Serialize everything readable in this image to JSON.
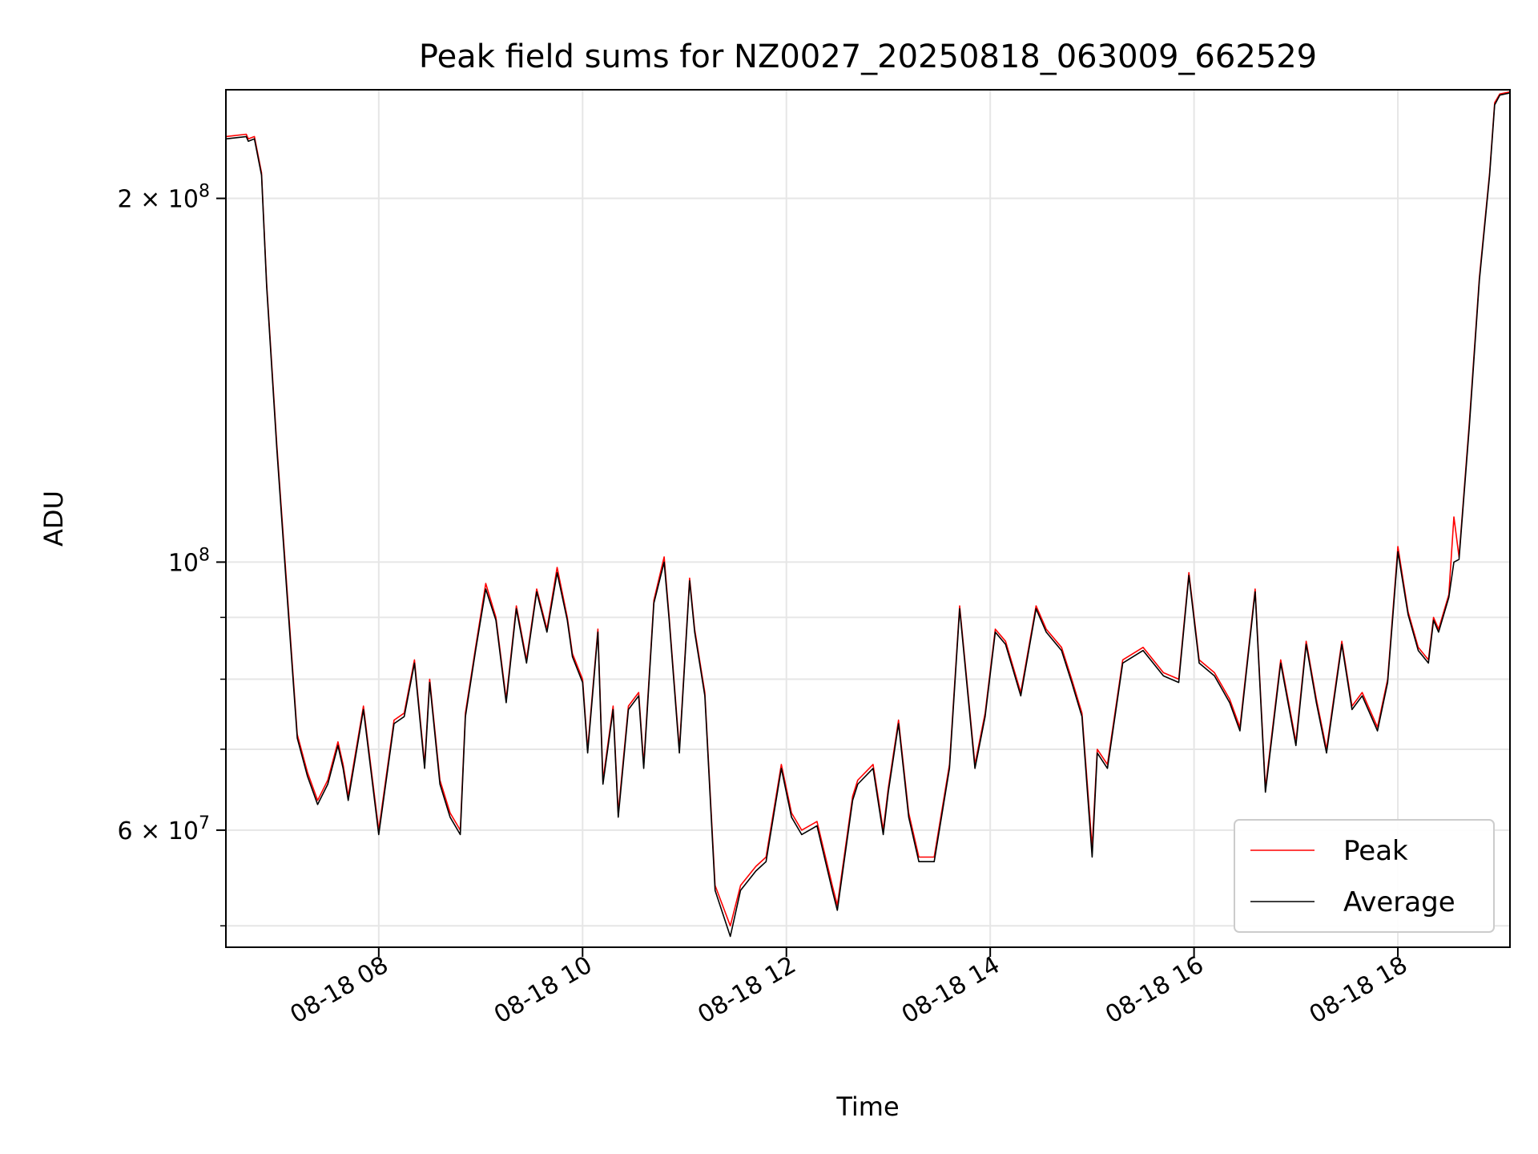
{
  "chart_data": {
    "type": "line",
    "title": "Peak field sums for NZ0027_20250818_063009_662529",
    "xlabel": "Time",
    "ylabel": "ADU",
    "x_unit": "hours (time of day, 2025-08-18)",
    "xlim": [
      6.5,
      19.1
    ],
    "ylim": [
      48000000,
      246000000
    ],
    "yscale": "log",
    "grid": true,
    "legend_position": "lower-right",
    "x_tick_values": [
      8,
      10,
      12,
      14,
      16,
      18
    ],
    "x_tick_labels": [
      "08-18 08",
      "08-18 10",
      "08-18 12",
      "08-18 14",
      "08-18 16",
      "08-18 18"
    ],
    "y_major_ticks": [
      {
        "value": 60000000,
        "mantissa": "6",
        "exp": "7"
      },
      {
        "value": 100000000,
        "mantissa": "",
        "exp": "8"
      },
      {
        "value": 200000000,
        "mantissa": "2",
        "exp": "8"
      }
    ],
    "y_minor_ticks": [
      50000000,
      70000000,
      80000000,
      90000000
    ],
    "x": [
      6.5,
      6.7,
      6.72,
      6.78,
      6.85,
      6.9,
      7.0,
      7.1,
      7.2,
      7.3,
      7.4,
      7.5,
      7.6,
      7.65,
      7.7,
      7.85,
      8.0,
      8.15,
      8.25,
      8.35,
      8.45,
      8.5,
      8.6,
      8.7,
      8.8,
      8.85,
      8.95,
      9.05,
      9.15,
      9.25,
      9.35,
      9.45,
      9.55,
      9.65,
      9.75,
      9.85,
      9.9,
      10.0,
      10.05,
      10.15,
      10.2,
      10.3,
      10.35,
      10.45,
      10.55,
      10.6,
      10.7,
      10.8,
      10.85,
      10.95,
      11.05,
      11.1,
      11.2,
      11.3,
      11.45,
      11.55,
      11.7,
      11.8,
      11.95,
      12.05,
      12.15,
      12.3,
      12.45,
      12.5,
      12.65,
      12.7,
      12.85,
      12.95,
      13.0,
      13.1,
      13.2,
      13.3,
      13.45,
      13.6,
      13.7,
      13.85,
      13.95,
      14.05,
      14.15,
      14.3,
      14.45,
      14.55,
      14.7,
      14.8,
      14.9,
      15.0,
      15.05,
      15.15,
      15.3,
      15.5,
      15.7,
      15.85,
      15.95,
      16.05,
      16.2,
      16.35,
      16.45,
      16.6,
      16.7,
      16.85,
      17.0,
      17.1,
      17.2,
      17.3,
      17.45,
      17.55,
      17.65,
      17.8,
      17.9,
      18.0,
      18.1,
      18.2,
      18.3,
      18.35,
      18.4,
      18.5,
      18.55,
      18.6,
      18.7,
      18.8,
      18.9,
      18.95,
      19.0,
      19.1
    ],
    "series": [
      {
        "name": "Peak",
        "color": "#ff0000",
        "values": [
          225000000,
          226000000,
          224000000,
          225000000,
          210000000,
          170000000,
          125000000,
          95000000,
          72000000,
          67000000,
          63500000,
          66000000,
          71000000,
          68000000,
          64000000,
          76000000,
          60000000,
          74000000,
          75000000,
          83000000,
          68000000,
          80000000,
          66000000,
          62000000,
          60000000,
          75000000,
          85000000,
          96000000,
          90000000,
          77000000,
          92000000,
          83000000,
          95000000,
          88000000,
          99000000,
          90000000,
          84000000,
          80000000,
          70000000,
          88000000,
          66000000,
          76000000,
          62000000,
          76000000,
          78000000,
          68000000,
          93000000,
          101000000,
          90000000,
          70000000,
          97000000,
          88000000,
          78000000,
          54000000,
          50000000,
          54000000,
          56000000,
          57000000,
          68000000,
          62000000,
          60000000,
          61000000,
          54000000,
          52000000,
          64000000,
          66000000,
          68000000,
          60000000,
          65000000,
          74000000,
          62000000,
          57000000,
          57000000,
          68000000,
          92000000,
          68000000,
          75000000,
          88000000,
          86000000,
          78000000,
          92000000,
          88000000,
          85000000,
          80000000,
          75000000,
          58000000,
          70000000,
          68000000,
          83000000,
          85000000,
          81000000,
          80000000,
          98000000,
          83000000,
          81000000,
          77000000,
          73000000,
          95000000,
          65000000,
          83000000,
          71000000,
          86000000,
          77000000,
          70000000,
          86000000,
          76000000,
          78000000,
          73000000,
          80000000,
          103000000,
          91000000,
          85000000,
          83000000,
          90000000,
          88000000,
          94000000,
          109000000,
          101000000,
          130000000,
          172000000,
          210000000,
          240000000,
          244000000,
          245000000
        ]
      },
      {
        "name": "Average",
        "color": "#000000",
        "values": [
          224000000,
          225000000,
          223000000,
          224000000,
          209000000,
          169000000,
          124000000,
          94000000,
          71500000,
          66500000,
          63000000,
          65500000,
          70500000,
          67500000,
          63500000,
          75500000,
          59500000,
          73500000,
          74500000,
          82500000,
          67500000,
          79500000,
          65500000,
          61500000,
          59500000,
          74500000,
          84500000,
          95000000,
          89500000,
          76500000,
          91500000,
          82500000,
          94500000,
          87500000,
          98000000,
          89500000,
          83500000,
          79500000,
          69500000,
          87500000,
          65500000,
          75500000,
          61500000,
          75500000,
          77500000,
          67500000,
          92500000,
          100000000,
          89500000,
          69500000,
          96500000,
          87500000,
          77500000,
          53500000,
          49000000,
          53500000,
          55500000,
          56500000,
          67500000,
          61500000,
          59500000,
          60500000,
          53500000,
          51500000,
          63500000,
          65500000,
          67500000,
          59500000,
          64500000,
          73500000,
          61500000,
          56500000,
          56500000,
          67500000,
          91500000,
          67500000,
          74500000,
          87500000,
          85500000,
          77500000,
          91500000,
          87500000,
          84500000,
          79500000,
          74500000,
          57000000,
          69500000,
          67500000,
          82500000,
          84500000,
          80500000,
          79500000,
          97500000,
          82500000,
          80500000,
          76500000,
          72500000,
          94500000,
          64500000,
          82500000,
          70500000,
          85500000,
          76500000,
          69500000,
          85500000,
          75500000,
          77500000,
          72500000,
          79500000,
          102000000,
          90500000,
          84500000,
          82500000,
          89500000,
          87500000,
          93500000,
          100000000,
          100500000,
          129000000,
          171000000,
          209000000,
          239000000,
          243500000,
          244500000
        ]
      }
    ]
  }
}
